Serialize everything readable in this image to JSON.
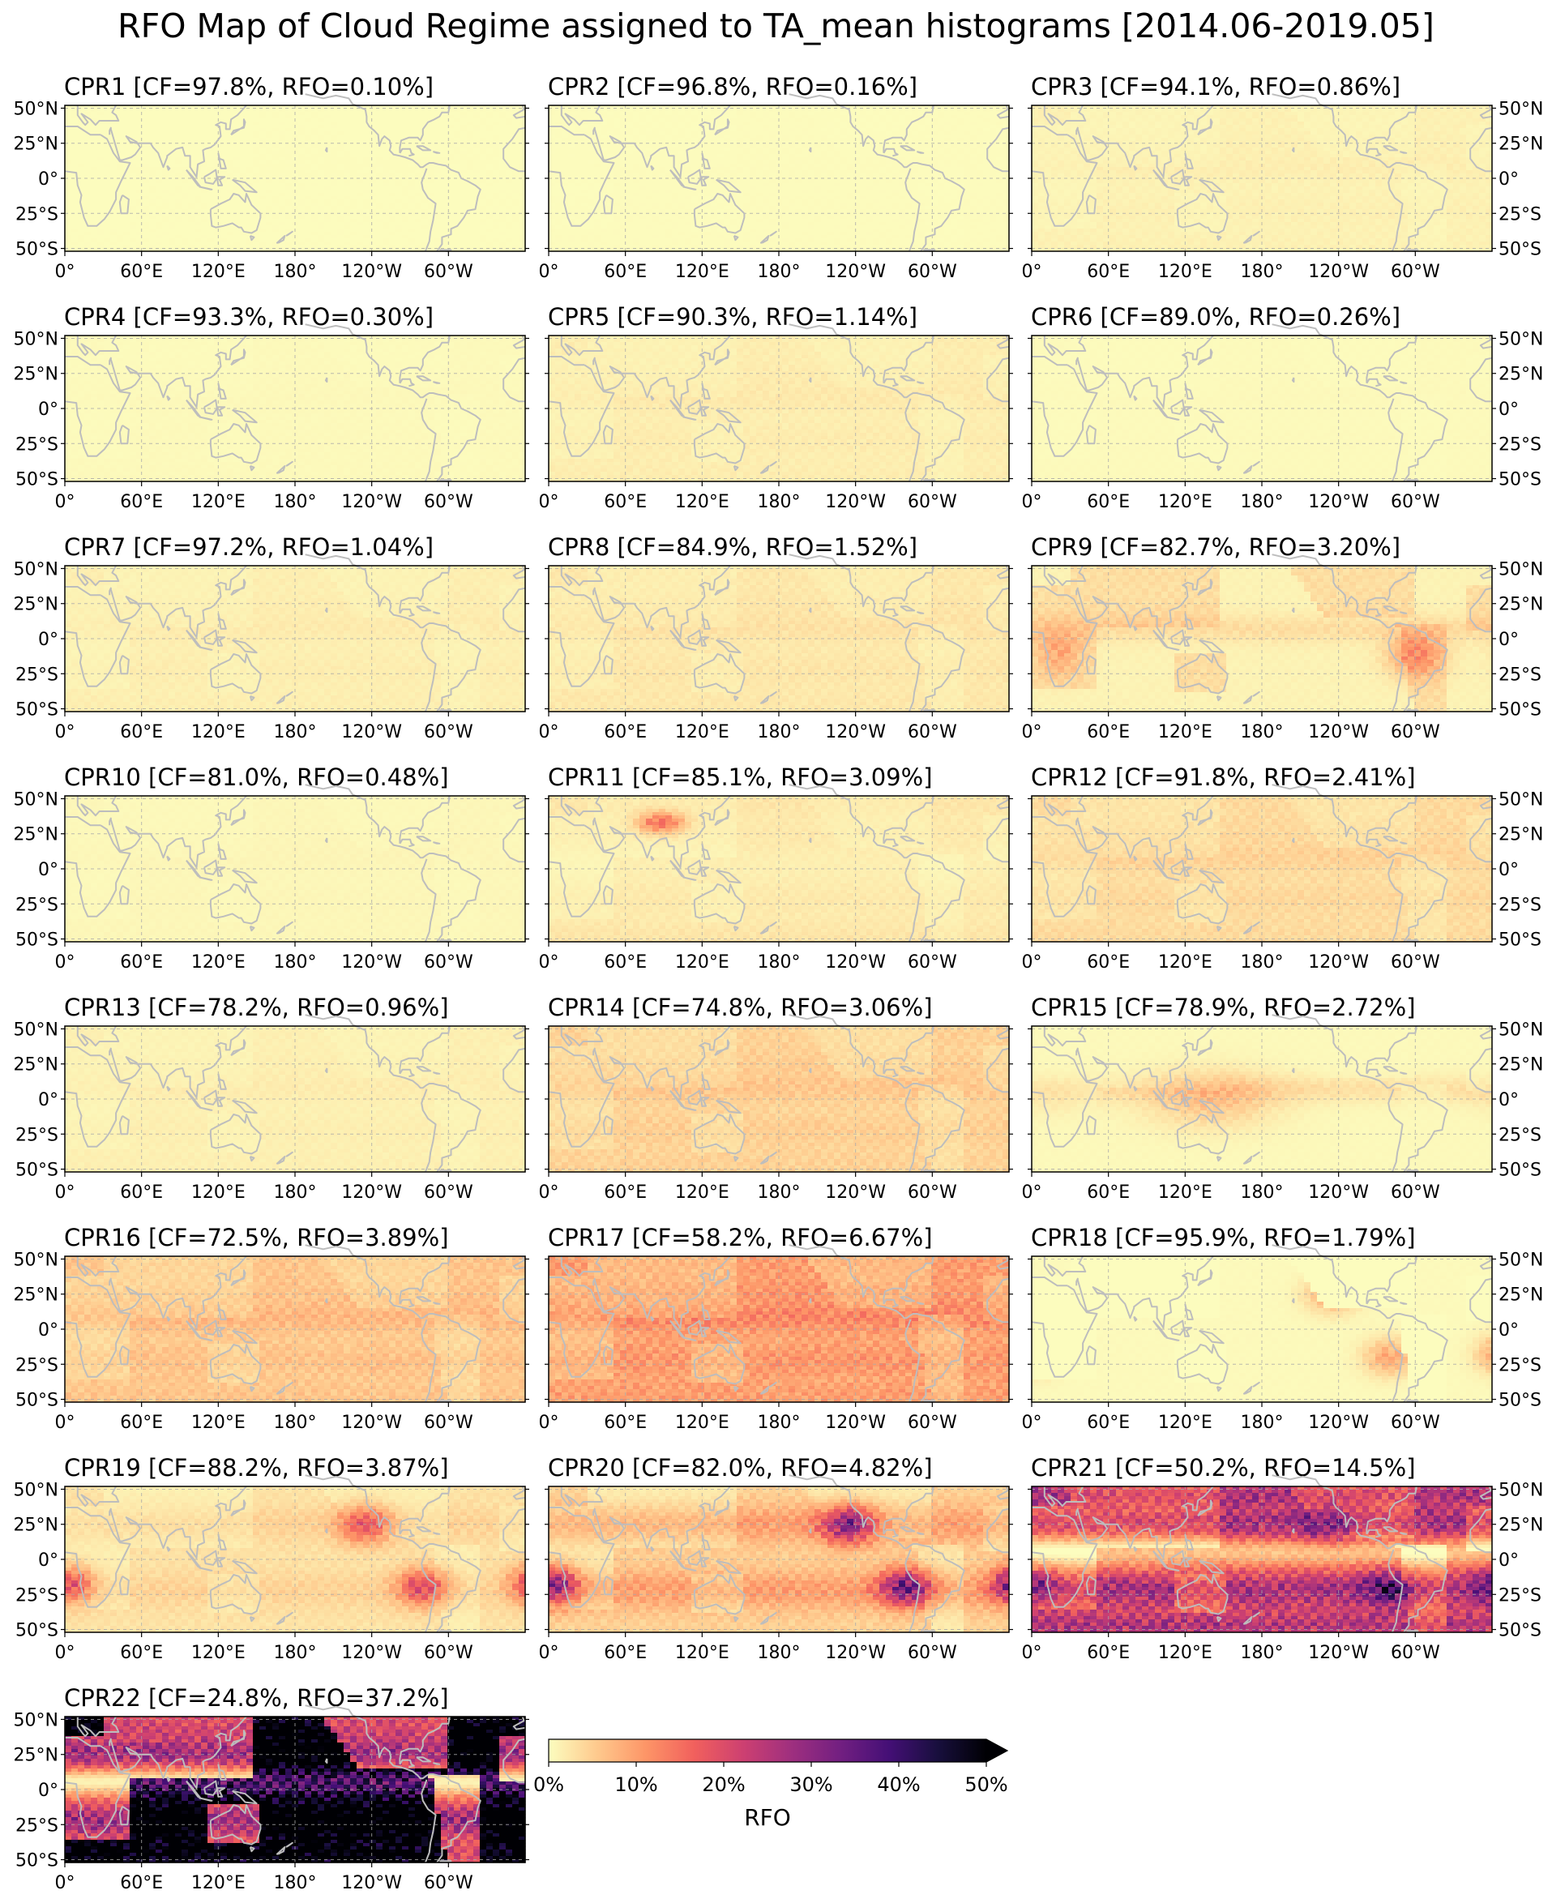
{
  "figure": {
    "title": "RFO Map of Cloud Regime assigned to TA_mean histograms [2014.06-2019.05]"
  },
  "colors": {
    "colormap": [
      "#fcfdbf",
      "#fec98d",
      "#fd9567",
      "#f1605d",
      "#cd4071",
      "#9e2f7f",
      "#721f81",
      "#440f76",
      "#180f3d",
      "#000004"
    ],
    "coastline": "#bdbdbd",
    "gridline": "#aaaaaa",
    "background": "#ffffff"
  },
  "chart_data": {
    "type": "heatmap",
    "quantity": "RFO",
    "xticks": [
      "0°",
      "60°E",
      "120°E",
      "180°",
      "120°W",
      "60°W"
    ],
    "yticks": [
      "50°N",
      "25°N",
      "0°",
      "25°S",
      "50°S"
    ],
    "x_range": [
      0,
      360
    ],
    "y_range": [
      -52,
      52
    ],
    "grid": true,
    "panels": [
      {
        "title": "CPR1 [CF=97.8%, RFO=0.10%]",
        "mean_rfo": 0.1
      },
      {
        "title": "CPR2 [CF=96.8%, RFO=0.16%]",
        "mean_rfo": 0.16
      },
      {
        "title": "CPR3 [CF=94.1%, RFO=0.86%]",
        "mean_rfo": 0.86
      },
      {
        "title": "CPR4 [CF=93.3%, RFO=0.30%]",
        "mean_rfo": 0.3
      },
      {
        "title": "CPR5 [CF=90.3%, RFO=1.14%]",
        "mean_rfo": 1.14
      },
      {
        "title": "CPR6 [CF=89.0%, RFO=0.26%]",
        "mean_rfo": 0.26
      },
      {
        "title": "CPR7 [CF=97.2%, RFO=1.04%]",
        "mean_rfo": 1.04
      },
      {
        "title": "CPR8 [CF=84.9%, RFO=1.52%]",
        "mean_rfo": 1.52
      },
      {
        "title": "CPR9 [CF=82.7%, RFO=3.20%]",
        "mean_rfo": 3.2
      },
      {
        "title": "CPR10 [CF=81.0%, RFO=0.48%]",
        "mean_rfo": 0.48
      },
      {
        "title": "CPR11 [CF=85.1%, RFO=3.09%]",
        "mean_rfo": 3.09
      },
      {
        "title": "CPR12 [CF=91.8%, RFO=2.41%]",
        "mean_rfo": 2.41
      },
      {
        "title": "CPR13 [CF=78.2%, RFO=0.96%]",
        "mean_rfo": 0.96
      },
      {
        "title": "CPR14 [CF=74.8%, RFO=3.06%]",
        "mean_rfo": 3.06
      },
      {
        "title": "CPR15 [CF=78.9%, RFO=2.72%]",
        "mean_rfo": 2.72
      },
      {
        "title": "CPR16 [CF=72.5%, RFO=3.89%]",
        "mean_rfo": 3.89
      },
      {
        "title": "CPR17 [CF=58.2%, RFO=6.67%]",
        "mean_rfo": 6.67
      },
      {
        "title": "CPR18 [CF=95.9%, RFO=1.79%]",
        "mean_rfo": 1.79
      },
      {
        "title": "CPR19 [CF=88.2%, RFO=3.87%]",
        "mean_rfo": 3.87
      },
      {
        "title": "CPR20 [CF=82.0%, RFO=4.82%]",
        "mean_rfo": 4.82
      },
      {
        "title": "CPR21 [CF=50.2%, RFO=14.5%]",
        "mean_rfo": 14.5
      },
      {
        "title": "CPR22 [CF=24.8%, RFO=37.2%]",
        "mean_rfo": 37.2
      }
    ],
    "colorbar": {
      "label": "RFO",
      "ticks": [
        "0%",
        "10%",
        "20%",
        "30%",
        "40%",
        "50%"
      ],
      "range": [
        0,
        50
      ],
      "extend": "max"
    }
  }
}
